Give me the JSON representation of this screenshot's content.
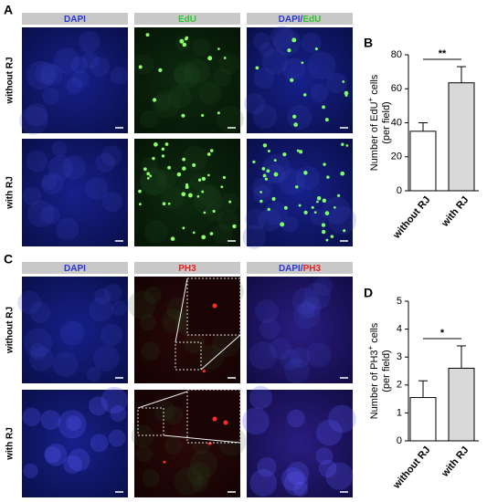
{
  "figure": {
    "panel_labels": [
      "A",
      "B",
      "C",
      "D"
    ],
    "image_panels": [
      {
        "columns": [
          [
            "DAPI"
          ],
          [
            "EdU"
          ],
          [
            "DAPI/",
            "EdU"
          ]
        ],
        "rows": [
          "without RJ",
          "with RJ"
        ]
      },
      {
        "columns": [
          [
            "DAPI"
          ],
          [
            "PH3"
          ],
          [
            "DAPI/",
            "PH3"
          ]
        ],
        "rows": [
          "without RJ",
          "with RJ"
        ]
      }
    ]
  },
  "chart_data": [
    {
      "type": "bar",
      "categories": [
        "without RJ",
        "with RJ"
      ],
      "values": [
        35,
        63.5
      ],
      "errors": [
        5,
        9.5
      ],
      "colors": [
        "#ffffff",
        "#d9d9d9"
      ],
      "ylim": [
        0,
        80
      ],
      "yticks": [
        0,
        20,
        40,
        60,
        80
      ],
      "ylabel": {
        "main": "Number of EdU",
        "sup": "+",
        "rest": " cells",
        "line2": "(per field)"
      },
      "significance": "**"
    },
    {
      "type": "bar",
      "categories": [
        "without RJ",
        "with RJ"
      ],
      "values": [
        1.55,
        2.6
      ],
      "errors": [
        0.6,
        0.8
      ],
      "colors": [
        "#ffffff",
        "#d9d9d9"
      ],
      "ylim": [
        0,
        5
      ],
      "yticks": [
        0,
        1,
        2,
        3,
        4,
        5
      ],
      "ylabel": {
        "main": "Number of PH3",
        "sup": "+",
        "rest": " cells",
        "line2": "(per field)"
      },
      "significance": "*"
    }
  ]
}
